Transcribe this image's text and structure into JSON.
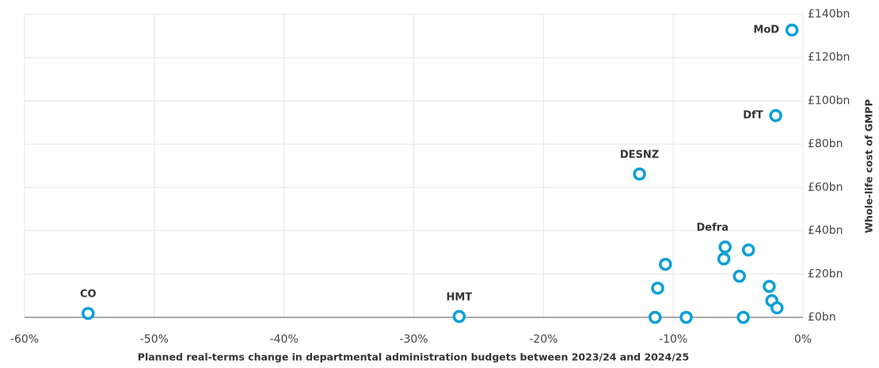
{
  "chart_data": {
    "type": "scatter",
    "x_label": "Planned real-terms change in departmental administration budgets between 2023/24 and 2024/25",
    "y_label": "Whole-life cost of GMPP",
    "xlim": [
      -60,
      0
    ],
    "xticks": [
      {
        "value": -60,
        "label": "-60%"
      },
      {
        "value": -50,
        "label": "-50%"
      },
      {
        "value": -40,
        "label": "-40%"
      },
      {
        "value": -30,
        "label": "-30%"
      },
      {
        "value": -20,
        "label": "-20%"
      },
      {
        "value": -10,
        "label": "-10%"
      },
      {
        "value": 0,
        "label": "0%"
      }
    ],
    "ylim": [
      0,
      140
    ],
    "yticks": [
      {
        "value": 0,
        "label": "£0bn"
      },
      {
        "value": 20,
        "label": "£20bn"
      },
      {
        "value": 40,
        "label": "£40bn"
      },
      {
        "value": 60,
        "label": "£60bn"
      },
      {
        "value": 80,
        "label": "£80bn"
      },
      {
        "value": 100,
        "label": "£100bn"
      },
      {
        "value": 120,
        "label": "£120bn"
      },
      {
        "value": 140,
        "label": "£140bn"
      }
    ],
    "grid": true,
    "series": [
      {
        "color": "#0b9fd8",
        "x": [
          -0.85,
          -2.1,
          -12.6,
          -6.0,
          -6.1,
          -4.2,
          -10.6,
          -4.9,
          -11.2,
          -2.6,
          -2.4,
          -2.0,
          -11.4,
          -9.0,
          -4.6,
          -55.1,
          -26.5
        ],
        "values": [
          132.7,
          93.2,
          66.2,
          32.5,
          27,
          31.1,
          24.5,
          19,
          13.5,
          14.3,
          7.7,
          4.4,
          0,
          0,
          0,
          1.8,
          0.4
        ],
        "labels": [
          "MoD",
          "DfT",
          "DESNZ",
          "Defra",
          null,
          null,
          null,
          null,
          null,
          null,
          null,
          null,
          null,
          null,
          null,
          "CO",
          "HMT"
        ]
      }
    ]
  }
}
